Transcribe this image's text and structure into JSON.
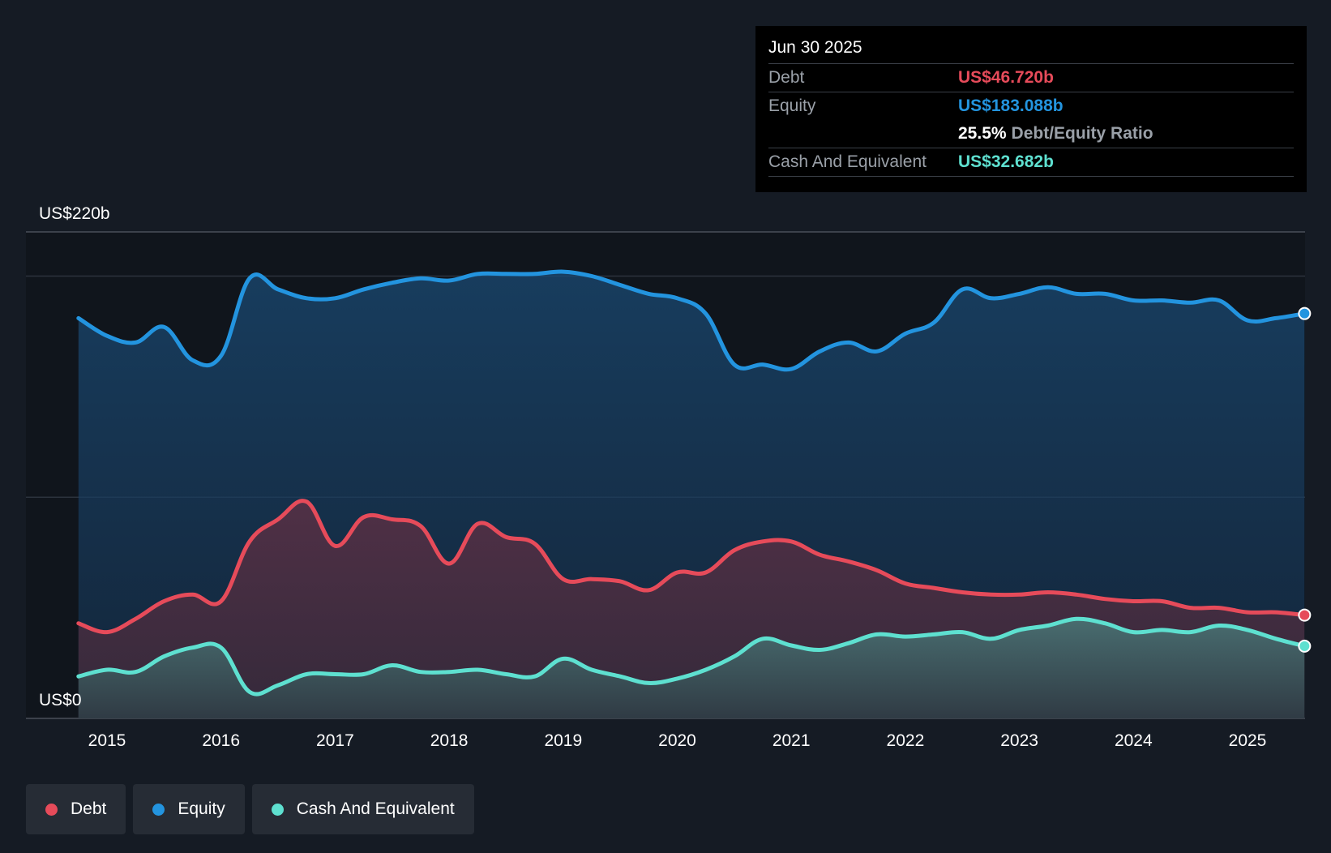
{
  "chart_data": {
    "type": "area",
    "title": "",
    "xlabel": "",
    "ylabel": "",
    "y_axis_labels": {
      "top": "US$220b",
      "bottom": "US$0"
    },
    "ylim": [
      0,
      220
    ],
    "xlim": [
      2014.5,
      2025.5
    ],
    "x_ticks": [
      "2015",
      "2016",
      "2017",
      "2018",
      "2019",
      "2020",
      "2021",
      "2022",
      "2023",
      "2024",
      "2025"
    ],
    "grid": true,
    "legend_position": "bottom-left",
    "series": [
      {
        "name": "Equity",
        "color": "#2394df",
        "points": [
          [
            2014.75,
            181
          ],
          [
            2015.0,
            173
          ],
          [
            2015.25,
            170
          ],
          [
            2015.5,
            177
          ],
          [
            2015.75,
            162
          ],
          [
            2016.0,
            164
          ],
          [
            2016.25,
            199
          ],
          [
            2016.5,
            194
          ],
          [
            2016.75,
            190
          ],
          [
            2017.0,
            190
          ],
          [
            2017.25,
            194
          ],
          [
            2017.5,
            197
          ],
          [
            2017.75,
            199
          ],
          [
            2018.0,
            198
          ],
          [
            2018.25,
            201
          ],
          [
            2018.5,
            201
          ],
          [
            2018.75,
            201
          ],
          [
            2019.0,
            202
          ],
          [
            2019.25,
            200
          ],
          [
            2019.5,
            196
          ],
          [
            2019.75,
            192
          ],
          [
            2020.0,
            190
          ],
          [
            2020.25,
            183
          ],
          [
            2020.5,
            160
          ],
          [
            2020.75,
            160
          ],
          [
            2021.0,
            158
          ],
          [
            2021.25,
            166
          ],
          [
            2021.5,
            170
          ],
          [
            2021.75,
            166
          ],
          [
            2022.0,
            174
          ],
          [
            2022.25,
            179
          ],
          [
            2022.5,
            194
          ],
          [
            2022.75,
            190
          ],
          [
            2023.0,
            192
          ],
          [
            2023.25,
            195
          ],
          [
            2023.5,
            192
          ],
          [
            2023.75,
            192
          ],
          [
            2024.0,
            189
          ],
          [
            2024.25,
            189
          ],
          [
            2024.5,
            188
          ],
          [
            2024.75,
            189
          ],
          [
            2025.0,
            180
          ],
          [
            2025.25,
            181
          ],
          [
            2025.5,
            183.088
          ]
        ]
      },
      {
        "name": "Debt",
        "color": "#e64b5a",
        "points": [
          [
            2014.75,
            43
          ],
          [
            2015.0,
            39
          ],
          [
            2015.25,
            45
          ],
          [
            2015.5,
            53
          ],
          [
            2015.75,
            56
          ],
          [
            2016.0,
            53
          ],
          [
            2016.25,
            80
          ],
          [
            2016.5,
            90
          ],
          [
            2016.75,
            98
          ],
          [
            2017.0,
            78
          ],
          [
            2017.25,
            91
          ],
          [
            2017.5,
            90
          ],
          [
            2017.75,
            87
          ],
          [
            2018.0,
            70
          ],
          [
            2018.25,
            88
          ],
          [
            2018.5,
            82
          ],
          [
            2018.75,
            79
          ],
          [
            2019.0,
            63
          ],
          [
            2019.25,
            63
          ],
          [
            2019.5,
            62
          ],
          [
            2019.75,
            58
          ],
          [
            2020.0,
            66
          ],
          [
            2020.25,
            66
          ],
          [
            2020.5,
            76
          ],
          [
            2020.75,
            80
          ],
          [
            2021.0,
            80
          ],
          [
            2021.25,
            74
          ],
          [
            2021.5,
            71
          ],
          [
            2021.75,
            67
          ],
          [
            2022.0,
            61
          ],
          [
            2022.25,
            59
          ],
          [
            2022.5,
            57
          ],
          [
            2022.75,
            56
          ],
          [
            2023.0,
            56
          ],
          [
            2023.25,
            57
          ],
          [
            2023.5,
            56
          ],
          [
            2023.75,
            54
          ],
          [
            2024.0,
            53
          ],
          [
            2024.25,
            53
          ],
          [
            2024.5,
            50
          ],
          [
            2024.75,
            50
          ],
          [
            2025.0,
            48
          ],
          [
            2025.25,
            48
          ],
          [
            2025.5,
            46.72
          ]
        ]
      },
      {
        "name": "Cash And Equivalent",
        "color": "#5ee0d0",
        "points": [
          [
            2014.75,
            19
          ],
          [
            2015.0,
            22
          ],
          [
            2015.25,
            21
          ],
          [
            2015.5,
            28
          ],
          [
            2015.75,
            32
          ],
          [
            2016.0,
            32
          ],
          [
            2016.25,
            12
          ],
          [
            2016.5,
            15
          ],
          [
            2016.75,
            20
          ],
          [
            2017.0,
            20
          ],
          [
            2017.25,
            20
          ],
          [
            2017.5,
            24
          ],
          [
            2017.75,
            21
          ],
          [
            2018.0,
            21
          ],
          [
            2018.25,
            22
          ],
          [
            2018.5,
            20
          ],
          [
            2018.75,
            19
          ],
          [
            2019.0,
            27
          ],
          [
            2019.25,
            22
          ],
          [
            2019.5,
            19
          ],
          [
            2019.75,
            16
          ],
          [
            2020.0,
            18
          ],
          [
            2020.25,
            22
          ],
          [
            2020.5,
            28
          ],
          [
            2020.75,
            36
          ],
          [
            2021.0,
            33
          ],
          [
            2021.25,
            31
          ],
          [
            2021.5,
            34
          ],
          [
            2021.75,
            38
          ],
          [
            2022.0,
            37
          ],
          [
            2022.25,
            38
          ],
          [
            2022.5,
            39
          ],
          [
            2022.75,
            36
          ],
          [
            2023.0,
            40
          ],
          [
            2023.25,
            42
          ],
          [
            2023.5,
            45
          ],
          [
            2023.75,
            43
          ],
          [
            2024.0,
            39
          ],
          [
            2024.25,
            40
          ],
          [
            2024.5,
            39
          ],
          [
            2024.75,
            42
          ],
          [
            2025.0,
            40
          ],
          [
            2025.25,
            36
          ],
          [
            2025.5,
            32.682
          ]
        ]
      }
    ]
  },
  "tooltip": {
    "date": "Jun 30 2025",
    "debt_label": "Debt",
    "debt_value": "US$46.720b",
    "equity_label": "Equity",
    "equity_value": "US$183.088b",
    "ratio_value": "25.5%",
    "ratio_label": "Debt/Equity Ratio",
    "cash_label": "Cash And Equivalent",
    "cash_value": "US$32.682b"
  },
  "legend": [
    {
      "label": "Debt",
      "color": "#e64b5a"
    },
    {
      "label": "Equity",
      "color": "#2394df"
    },
    {
      "label": "Cash And Equivalent",
      "color": "#5ee0d0"
    }
  ]
}
